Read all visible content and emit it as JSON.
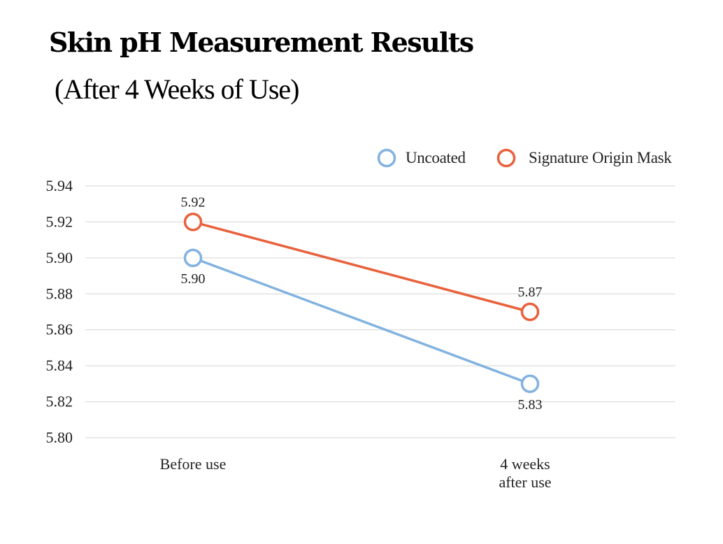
{
  "header": {
    "title": "Skin pH Measurement Results",
    "subtitle": "(After 4 Weeks of Use)"
  },
  "chart_data": {
    "type": "line",
    "categories": [
      [
        "Before use"
      ],
      [
        "4 weeks",
        "after use"
      ]
    ],
    "series": [
      {
        "name": "Uncoated",
        "values": [
          5.9,
          5.83
        ],
        "color": "#82b2e0"
      },
      {
        "name": "Signature Origin Mask",
        "values": [
          5.92,
          5.87
        ],
        "color": "#e8613c"
      }
    ],
    "ylim": [
      5.8,
      5.94
    ],
    "yticks": [
      5.8,
      5.82,
      5.84,
      5.86,
      5.88,
      5.9,
      5.92,
      5.94
    ],
    "data_labels": [
      {
        "series": 0,
        "point": 0,
        "text": "5.90",
        "position": "below"
      },
      {
        "series": 0,
        "point": 1,
        "text": "5.83",
        "position": "below"
      },
      {
        "series": 1,
        "point": 0,
        "text": "5.92",
        "position": "above"
      },
      {
        "series": 1,
        "point": 1,
        "text": "5.87",
        "position": "above"
      }
    ],
    "grid": true,
    "legend": "top-right",
    "marker": "open-circle"
  }
}
